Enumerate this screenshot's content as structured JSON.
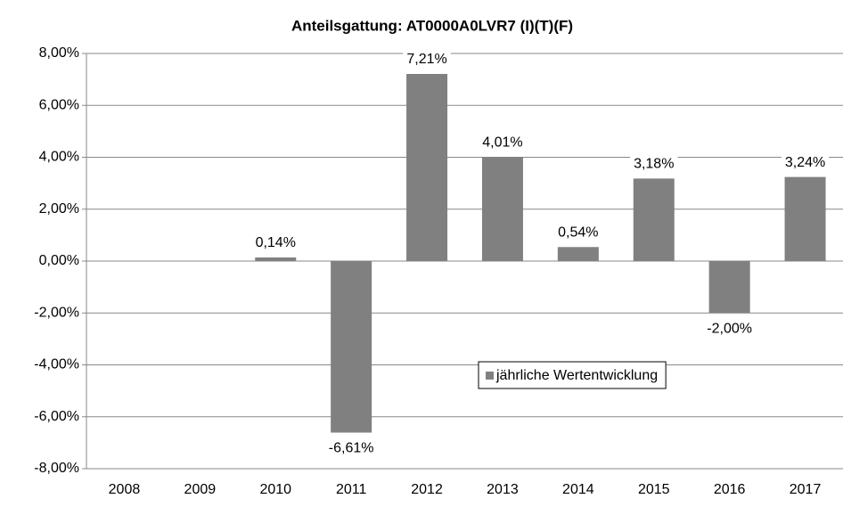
{
  "chart_data": {
    "type": "bar",
    "title": "Anteilsgattung: AT0000A0LVR7 (I)(T)(F)",
    "categories": [
      "2008",
      "2009",
      "2010",
      "2011",
      "2012",
      "2013",
      "2014",
      "2015",
      "2016",
      "2017"
    ],
    "series": [
      {
        "name": "jährliche Wertentwicklung",
        "color": "#808080",
        "values": [
          null,
          null,
          0.14,
          -6.61,
          7.21,
          4.01,
          0.54,
          3.18,
          -2.0,
          3.24
        ],
        "value_labels": [
          null,
          null,
          "0,14%",
          "-6,61%",
          "7,21%",
          "4,01%",
          "0,54%",
          "3,18%",
          "-2,00%",
          "3,24%"
        ]
      }
    ],
    "ylim": [
      -8,
      8
    ],
    "yticks": [
      {
        "value": -8,
        "label": "-8,00%"
      },
      {
        "value": -6,
        "label": "-6,00%"
      },
      {
        "value": -4,
        "label": "-4,00%"
      },
      {
        "value": -2,
        "label": "-2,00%"
      },
      {
        "value": 0,
        "label": "0,00%"
      },
      {
        "value": 2,
        "label": "2,00%"
      },
      {
        "value": 4,
        "label": "4,00%"
      },
      {
        "value": 6,
        "label": "6,00%"
      },
      {
        "value": 8,
        "label": "8,00%"
      }
    ],
    "grid": true
  }
}
